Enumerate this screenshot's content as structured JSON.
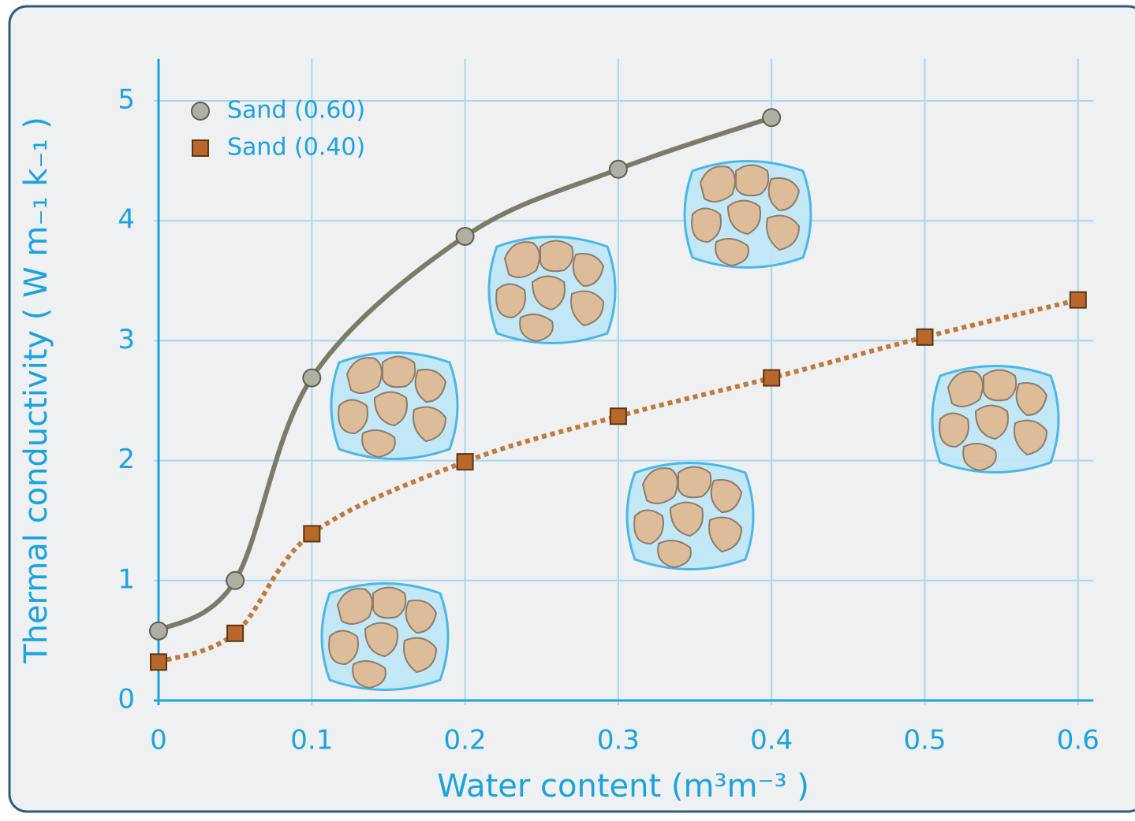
{
  "chart_data": {
    "type": "line",
    "xlabel": "Water content (m³m⁻³ )",
    "ylabel": "Thermal conductivity ( W m₋₁ k₋₁ )",
    "xlim": [
      0,
      0.61
    ],
    "ylim": [
      0,
      5.35
    ],
    "xticks": [
      0,
      0.1,
      0.2,
      0.3,
      0.4,
      0.5,
      0.6
    ],
    "yticks": [
      0,
      1,
      2,
      3,
      4,
      5
    ],
    "grid": true,
    "legend": "upper left",
    "series": [
      {
        "name": "Sand (0.60)",
        "color": "#7b7b68",
        "marker": "circle",
        "linestyle": "solid",
        "x": [
          0,
          0.05,
          0.1,
          0.2,
          0.3,
          0.4
        ],
        "values": [
          0.58,
          1.0,
          2.69,
          3.87,
          4.43,
          4.86
        ]
      },
      {
        "name": "Sand (0.40)",
        "color": "#c07a3a",
        "marker": "square",
        "linestyle": "dotted",
        "x": [
          0,
          0.05,
          0.1,
          0.2,
          0.3,
          0.4,
          0.5,
          0.6
        ],
        "values": [
          0.32,
          0.56,
          1.39,
          1.99,
          2.37,
          2.69,
          3.03,
          3.34
        ]
      }
    ]
  }
}
